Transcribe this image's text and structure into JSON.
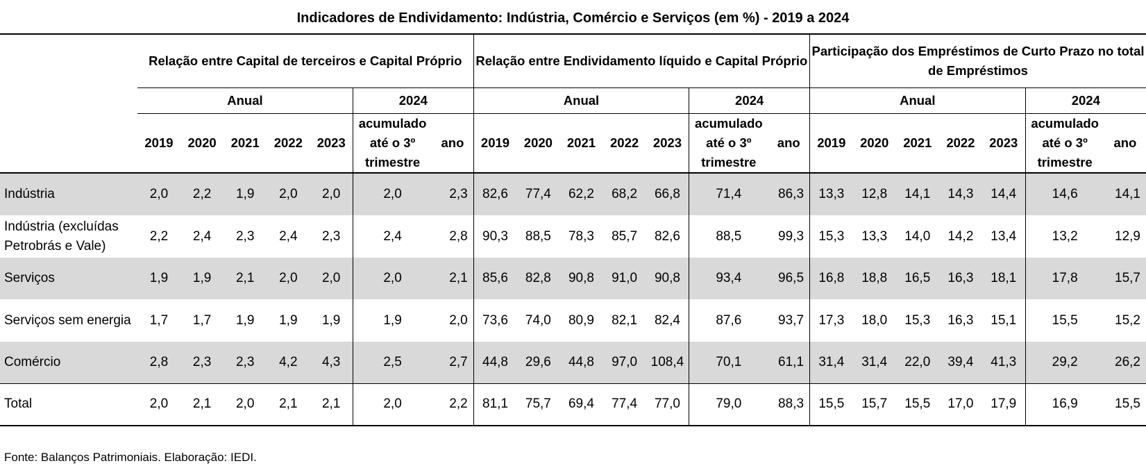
{
  "title": "Indicadores de Endividamento:  Indústria, Comércio e Serviços (em %) - 2019 a 2024",
  "groups": [
    "Relação entre Capital de terceiros e Capital Próprio",
    "Relação entre Endividamento líquido e Capital Próprio",
    "Participação dos Empréstimos de Curto Prazo no total de Empréstimos"
  ],
  "sub_annual": "Anual",
  "sub_2024": "2024",
  "years": [
    "2019",
    "2020",
    "2021",
    "2022",
    "2023"
  ],
  "col_acumulado": "acumulado até o 3º trimestre",
  "col_ano": "ano",
  "rows": [
    {
      "label": "Indústria",
      "values": [
        "2,0",
        "2,2",
        "1,9",
        "2,0",
        "2,0",
        "2,0",
        "2,3",
        "82,6",
        "77,4",
        "62,2",
        "68,2",
        "66,8",
        "71,4",
        "86,3",
        "13,3",
        "12,8",
        "14,1",
        "14,3",
        "14,4",
        "14,6",
        "14,1"
      ]
    },
    {
      "label": "Indústria  (excluídas Petrobrás e Vale)",
      "values": [
        "2,2",
        "2,4",
        "2,3",
        "2,4",
        "2,3",
        "2,4",
        "2,8",
        "90,3",
        "88,5",
        "78,3",
        "85,7",
        "82,6",
        "88,5",
        "99,3",
        "15,3",
        "13,3",
        "14,0",
        "14,2",
        "13,4",
        "13,2",
        "12,9"
      ]
    },
    {
      "label": "Serviços",
      "values": [
        "1,9",
        "1,9",
        "2,1",
        "2,0",
        "2,0",
        "2,0",
        "2,1",
        "85,6",
        "82,8",
        "90,8",
        "91,0",
        "90,8",
        "93,4",
        "96,5",
        "16,8",
        "18,8",
        "16,5",
        "16,3",
        "18,1",
        "17,8",
        "15,7"
      ]
    },
    {
      "label": " Serviços sem energia",
      "values": [
        "1,7",
        "1,7",
        "1,9",
        "1,9",
        "1,9",
        "1,9",
        "2,0",
        "73,6",
        "74,0",
        "80,9",
        "82,1",
        "82,4",
        "87,6",
        "93,7",
        "17,3",
        "18,0",
        "15,3",
        "16,3",
        "15,1",
        "15,5",
        "15,2"
      ]
    },
    {
      "label": "Comércio",
      "values": [
        "2,8",
        "2,3",
        "2,3",
        "4,2",
        "4,3",
        "2,5",
        "2,7",
        "44,8",
        "29,6",
        "44,8",
        "97,0",
        "108,4",
        "70,1",
        "61,1",
        "31,4",
        "31,4",
        "22,0",
        "39,4",
        "41,3",
        "29,2",
        "26,2"
      ]
    },
    {
      "label": "Total",
      "values": [
        "2,0",
        "2,1",
        "2,0",
        "2,1",
        "2,1",
        "2,0",
        "2,2",
        "81,1",
        "75,7",
        "69,4",
        "77,4",
        "77,0",
        "79,0",
        "88,3",
        "15,5",
        "15,7",
        "15,5",
        "17,0",
        "17,9",
        "16,9",
        "15,5"
      ]
    }
  ],
  "source": "Fonte: Balanços Patrimoniais. Elaboração: IEDI."
}
